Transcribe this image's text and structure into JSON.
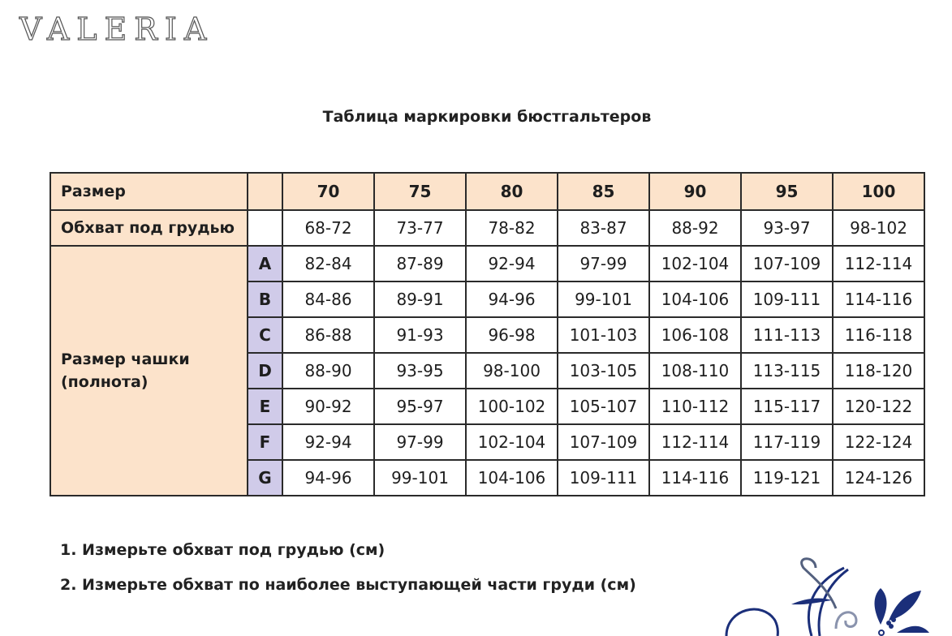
{
  "logo": "VALERIA",
  "title": "Таблица маркировки бюстгальтеров",
  "table": {
    "size_label": "Размер",
    "underbust_label": "Обхват под грудью",
    "cup_label_line1": "Размер чашки",
    "cup_label_line2": "(полнота)",
    "sizes": [
      "70",
      "75",
      "80",
      "85",
      "90",
      "95",
      "100"
    ],
    "underbust": [
      "68-72",
      "73-77",
      "78-82",
      "83-87",
      "88-92",
      "93-97",
      "98-102"
    ],
    "cups": [
      {
        "letter": "A",
        "values": [
          "82-84",
          "87-89",
          "92-94",
          "97-99",
          "102-104",
          "107-109",
          "112-114"
        ]
      },
      {
        "letter": "B",
        "values": [
          "84-86",
          "89-91",
          "94-96",
          "99-101",
          "104-106",
          "109-111",
          "114-116"
        ]
      },
      {
        "letter": "C",
        "values": [
          "86-88",
          "91-93",
          "96-98",
          "101-103",
          "106-108",
          "111-113",
          "116-118"
        ]
      },
      {
        "letter": "D",
        "values": [
          "88-90",
          "93-95",
          "98-100",
          "103-105",
          "108-110",
          "113-115",
          "118-120"
        ]
      },
      {
        "letter": "E",
        "values": [
          "90-92",
          "95-97",
          "100-102",
          "105-107",
          "110-112",
          "115-117",
          "120-122"
        ]
      },
      {
        "letter": "F",
        "values": [
          "92-94",
          "97-99",
          "102-104",
          "107-109",
          "112-114",
          "117-119",
          "122-124"
        ]
      },
      {
        "letter": "G",
        "values": [
          "94-96",
          "99-101",
          "104-106",
          "109-111",
          "114-116",
          "119-121",
          "124-126"
        ]
      }
    ]
  },
  "notes": [
    "1. Измерьте обхват под грудью (см)",
    "2. Измерьте обхват по наиболее выступающей части груди (см)"
  ],
  "colors": {
    "peach": "#fce3cb",
    "lavender": "#d0cbe9",
    "ornament": "#1b2f7a"
  }
}
